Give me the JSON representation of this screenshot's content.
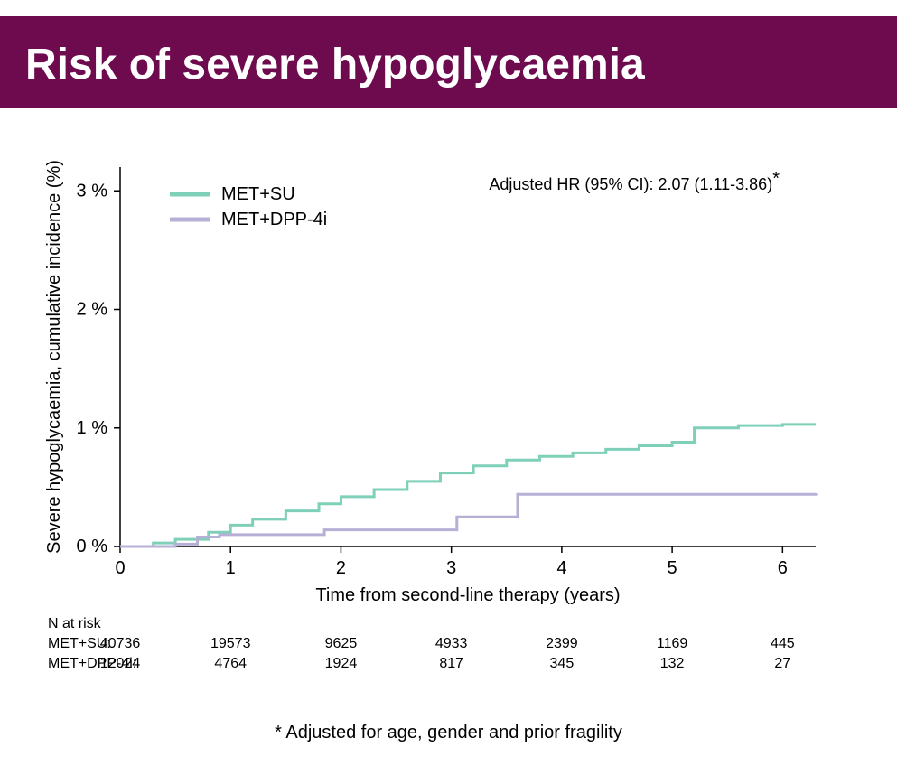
{
  "title": "Risk of severe hypoglycaemia",
  "title_bar_color": "#6e0a4e",
  "chart": {
    "type": "step-line",
    "xlabel": "Time from second-line therapy (years)",
    "ylabel": "Severe hypoglycaemia, cumulative incidence (%)",
    "x_ticks": [
      0,
      1,
      2,
      3,
      4,
      5,
      6
    ],
    "x_tick_labels": [
      "0",
      "1",
      "2",
      "3",
      "4",
      "5",
      "6"
    ],
    "y_ticks": [
      0,
      1,
      2,
      3
    ],
    "y_tick_labels": [
      "0 %",
      "1 %",
      "2 %",
      "3 %"
    ],
    "xlim": [
      0,
      6.3
    ],
    "ylim": [
      0,
      3.2
    ],
    "axis_color": "#000000",
    "axis_fontsize": 20,
    "tick_fontsize": 20,
    "line_width": 3,
    "background": "#ffffff",
    "annotation": "Adjusted HR (95% CI): 2.07 (1.11-3.86)",
    "annotation_suffix": "*",
    "annotation_fontsize": 18,
    "legend_fontsize": 20,
    "legend_line_width": 5,
    "series": [
      {
        "name": "MET+SU",
        "color": "#7fd0b8",
        "points": [
          [
            0,
            0
          ],
          [
            0.3,
            0.03
          ],
          [
            0.5,
            0.06
          ],
          [
            0.8,
            0.12
          ],
          [
            1.0,
            0.18
          ],
          [
            1.2,
            0.23
          ],
          [
            1.5,
            0.3
          ],
          [
            1.8,
            0.36
          ],
          [
            2.0,
            0.42
          ],
          [
            2.3,
            0.48
          ],
          [
            2.6,
            0.55
          ],
          [
            2.9,
            0.62
          ],
          [
            3.2,
            0.68
          ],
          [
            3.5,
            0.73
          ],
          [
            3.8,
            0.76
          ],
          [
            4.1,
            0.79
          ],
          [
            4.4,
            0.82
          ],
          [
            4.7,
            0.85
          ],
          [
            5.0,
            0.88
          ],
          [
            5.2,
            1.0
          ],
          [
            5.6,
            1.02
          ],
          [
            6.0,
            1.03
          ],
          [
            6.3,
            1.03
          ]
        ]
      },
      {
        "name": "MET+DPP-4i",
        "color": "#b6b0d6",
        "points": [
          [
            0,
            0
          ],
          [
            0.5,
            0.02
          ],
          [
            0.7,
            0.08
          ],
          [
            0.9,
            0.1
          ],
          [
            1.2,
            0.1
          ],
          [
            1.8,
            0.1
          ],
          [
            1.85,
            0.14
          ],
          [
            2.6,
            0.14
          ],
          [
            3.0,
            0.14
          ],
          [
            3.05,
            0.25
          ],
          [
            3.5,
            0.25
          ],
          [
            3.6,
            0.44
          ],
          [
            4.5,
            0.44
          ],
          [
            5.5,
            0.44
          ],
          [
            6.3,
            0.45
          ]
        ]
      }
    ]
  },
  "risk_table": {
    "header": "N at risk",
    "columns": [
      0,
      1,
      2,
      3,
      4,
      5,
      6
    ],
    "rows": [
      {
        "label": "MET+SU:",
        "values": [
          "40736",
          "19573",
          "9625",
          "4933",
          "2399",
          "1169",
          "445"
        ]
      },
      {
        "label": "MET+DPP-4i:",
        "values": [
          "12024",
          "4764",
          "1924",
          "817",
          "345",
          "132",
          "27"
        ]
      }
    ],
    "fontsize": 16
  },
  "footnote": "* Adjusted for age, gender and prior fragility",
  "footnote_fontsize": 20
}
